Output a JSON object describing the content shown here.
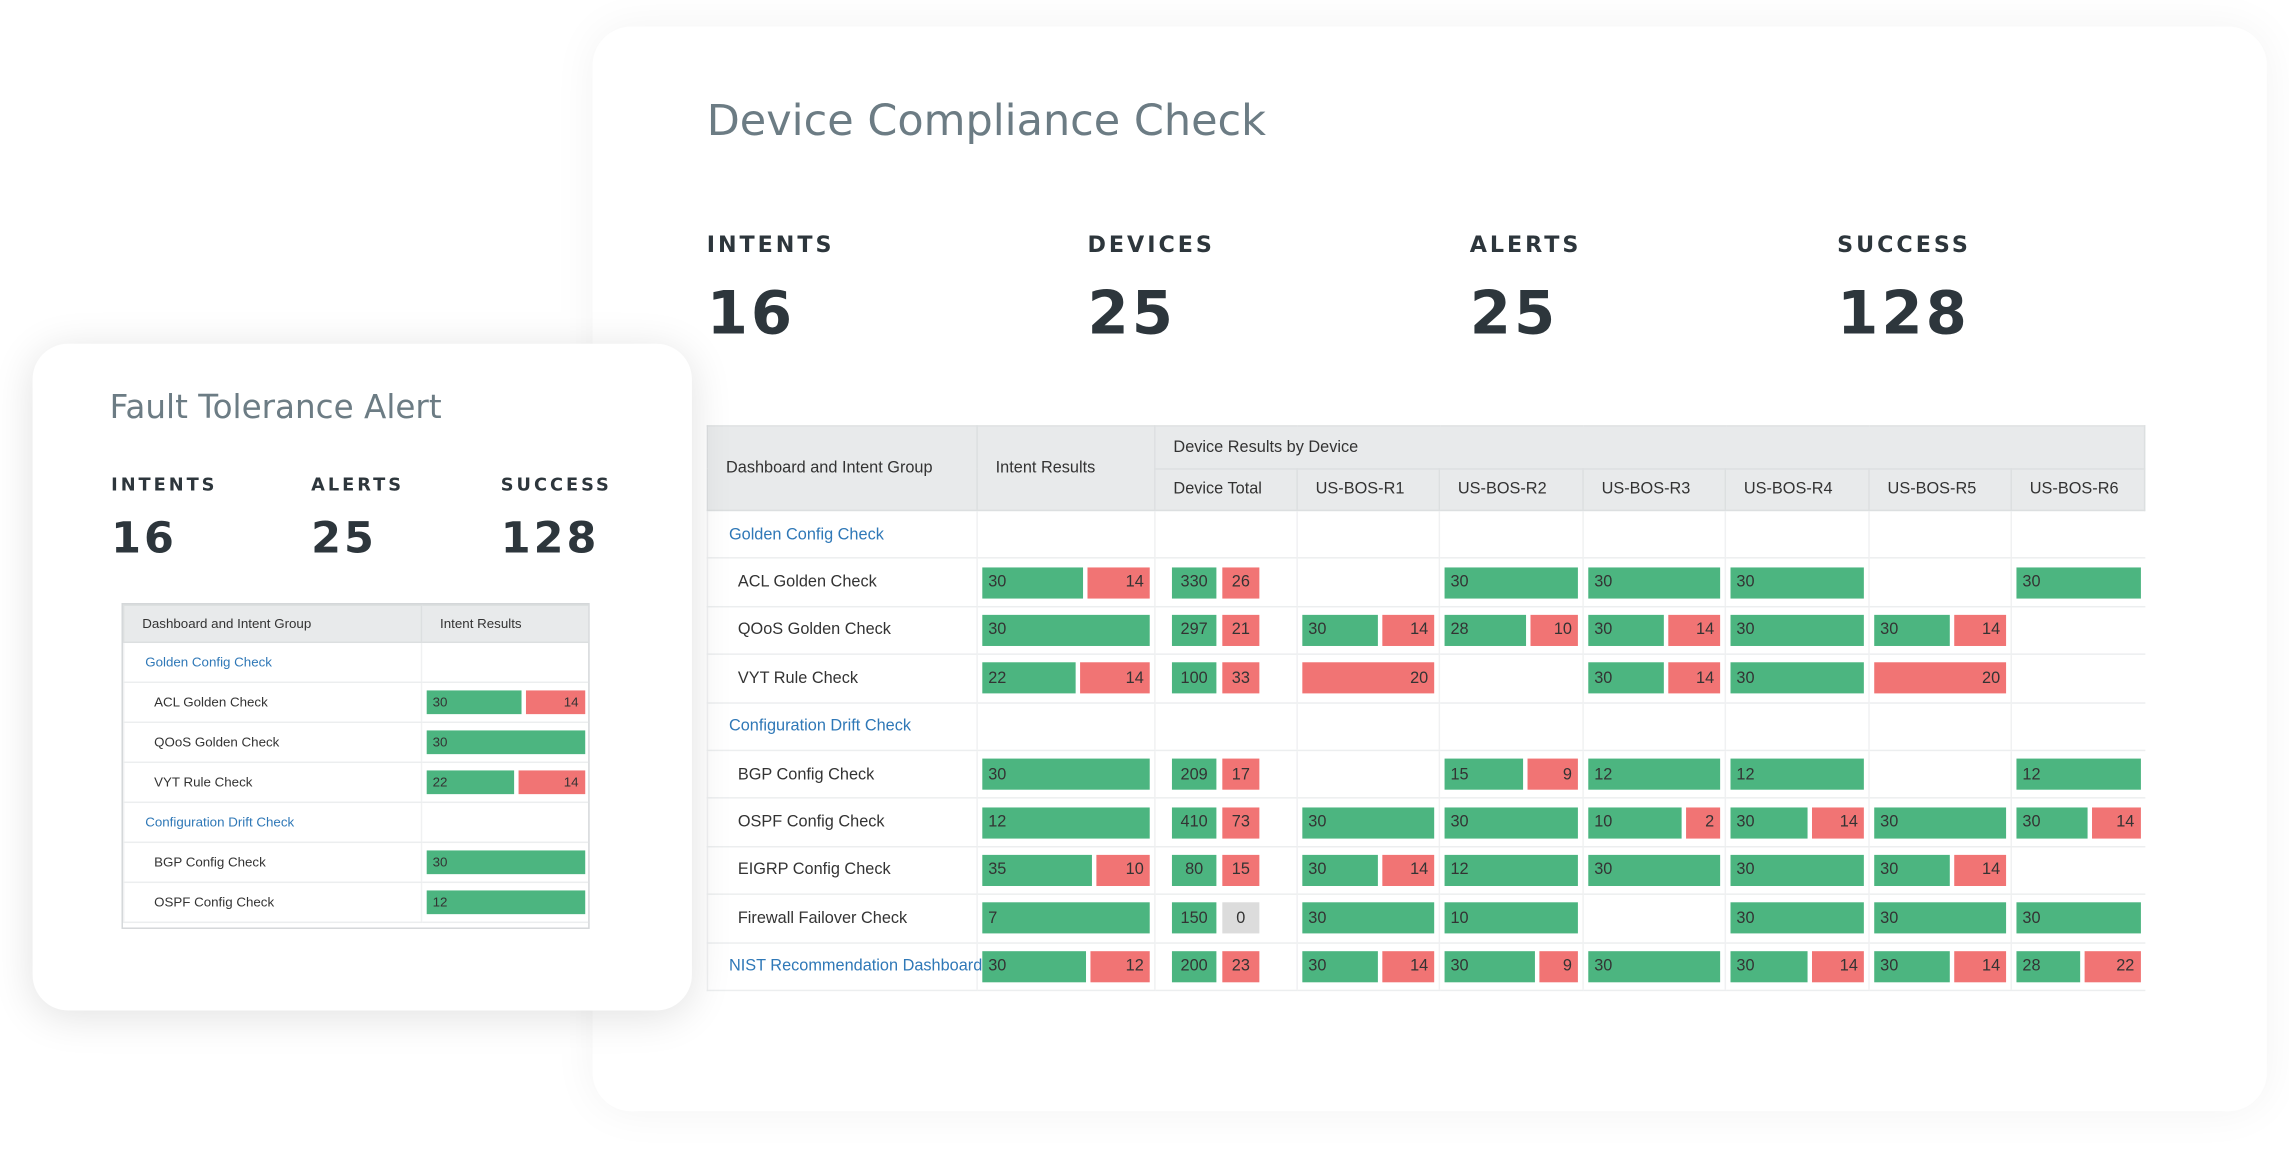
{
  "main": {
    "title": "Device Compliance Check",
    "stats": [
      {
        "label": "INTENTS",
        "value": 16
      },
      {
        "label": "DEVICES",
        "value": 25
      },
      {
        "label": "ALERTS",
        "value": 25
      },
      {
        "label": "SUCCESS",
        "value": 128
      }
    ],
    "table": {
      "group_header": "Dashboard and Intent Group",
      "intent_header": "Intent Results",
      "device_header": "Device Results by Device",
      "columns": [
        "Device Total",
        "US-BOS-R1",
        "US-BOS-R2",
        "US-BOS-R3",
        "US-BOS-R4",
        "US-BOS-R5",
        "US-BOS-R6"
      ],
      "groups": [
        {
          "name": "Golden Config Check",
          "rows": [
            {
              "name": "ACL Golden Check",
              "results": [
                {
                  "pass": 30,
                  "fail": 14
                },
                {
                  "pass": 330,
                  "fail": 26
                },
                null,
                {
                  "pass": 30
                },
                {
                  "pass": 30
                },
                {
                  "pass": 30
                },
                null,
                {
                  "pass": 30
                }
              ]
            },
            {
              "name": "QOoS Golden Check",
              "results": [
                {
                  "pass": 30
                },
                {
                  "pass": 297,
                  "fail": 21
                },
                {
                  "pass": 30,
                  "fail": 14
                },
                {
                  "pass": 28,
                  "fail": 10
                },
                {
                  "pass": 30,
                  "fail": 14
                },
                {
                  "pass": 30
                },
                {
                  "pass": 30,
                  "fail": 14
                },
                null
              ]
            },
            {
              "name": "VYT Rule Check",
              "results": [
                {
                  "pass": 22,
                  "fail": 14
                },
                {
                  "pass": 100,
                  "fail": 33
                },
                {
                  "fail": 20
                },
                null,
                {
                  "pass": 30,
                  "fail": 14
                },
                {
                  "pass": 30
                },
                {
                  "fail": 20
                },
                null
              ]
            }
          ]
        },
        {
          "name": "Configuration Drift Check",
          "rows": [
            {
              "name": "BGP Config Check",
              "results": [
                {
                  "pass": 30
                },
                {
                  "pass": 209,
                  "fail": 17
                },
                null,
                {
                  "pass": 15,
                  "fail": 9
                },
                {
                  "pass": 12
                },
                {
                  "pass": 12
                },
                null,
                {
                  "pass": 12
                }
              ]
            },
            {
              "name": "OSPF Config Check",
              "results": [
                {
                  "pass": 12
                },
                {
                  "pass": 410,
                  "fail": 73
                },
                {
                  "pass": 30
                },
                {
                  "pass": 30
                },
                {
                  "pass": 10,
                  "fail": 2
                },
                {
                  "pass": 30,
                  "fail": 14
                },
                {
                  "pass": 30
                },
                {
                  "pass": 30,
                  "fail": 14
                }
              ]
            },
            {
              "name": "EIGRP Config Check",
              "results": [
                {
                  "pass": 35,
                  "fail": 10
                },
                {
                  "pass": 80,
                  "fail": 15
                },
                {
                  "pass": 30,
                  "fail": 14
                },
                {
                  "pass": 12
                },
                {
                  "pass": 30
                },
                {
                  "pass": 30
                },
                {
                  "pass": 30,
                  "fail": 14
                },
                null
              ]
            },
            {
              "name": "Firewall Failover Check",
              "results": [
                {
                  "pass": 7
                },
                {
                  "pass": 150,
                  "fail": 0
                },
                {
                  "pass": 30
                },
                {
                  "pass": 10
                },
                null,
                {
                  "pass": 30
                },
                {
                  "pass": 30
                },
                {
                  "pass": 30
                }
              ]
            }
          ]
        },
        {
          "name": "NIST Recommendation Dashboard",
          "results": [
            {
              "pass": 30,
              "fail": 12
            },
            {
              "pass": 200,
              "fail": 23
            },
            {
              "pass": 30,
              "fail": 14
            },
            {
              "pass": 30,
              "fail": 9
            },
            {
              "pass": 30
            },
            {
              "pass": 30,
              "fail": 14
            },
            {
              "pass": 30,
              "fail": 14
            },
            {
              "pass": 28,
              "fail": 22
            }
          ]
        }
      ]
    }
  },
  "side": {
    "title": "Fault Tolerance Alert",
    "stats": [
      {
        "label": "INTENTS",
        "value": 16
      },
      {
        "label": "ALERTS",
        "value": 25
      },
      {
        "label": "SUCCESS",
        "value": 128
      }
    ],
    "table": {
      "group_header": "Dashboard and Intent Group",
      "intent_header": "Intent Results",
      "groups": [
        {
          "name": "Golden Config Check",
          "rows": [
            {
              "name": "ACL Golden Check",
              "results": [
                {
                  "pass": 30,
                  "fail": 14
                }
              ]
            },
            {
              "name": "QOoS Golden Check",
              "results": [
                {
                  "pass": 30
                }
              ]
            },
            {
              "name": "VYT Rule Check",
              "results": [
                {
                  "pass": 22,
                  "fail": 14
                }
              ]
            }
          ]
        },
        {
          "name": "Configuration Drift Check",
          "rows": [
            {
              "name": "BGP Config Check",
              "results": [
                {
                  "pass": 30
                }
              ]
            },
            {
              "name": "OSPF Config Check",
              "results": [
                {
                  "pass": 12
                }
              ]
            }
          ]
        }
      ]
    }
  }
}
